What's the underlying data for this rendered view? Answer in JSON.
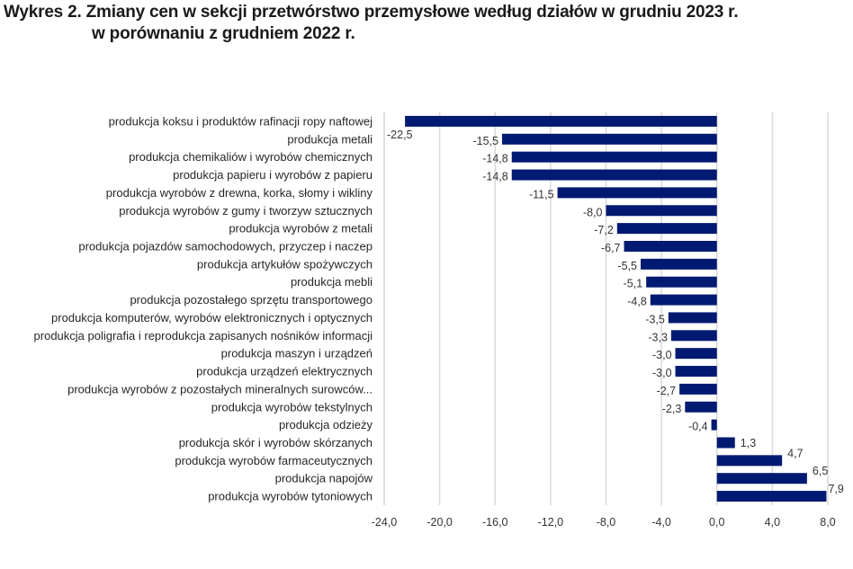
{
  "chart_data": {
    "type": "bar",
    "orientation": "horizontal",
    "title_line1": "Wykres 2. Zmiany cen w sekcji przetwórstwo przemysłowe według działów w grudniu 2023 r.",
    "title_line2": "w porównaniu z grudniem 2022 r.",
    "xlabel": "",
    "ylabel": "",
    "xlim": [
      -24,
      8
    ],
    "xticks": [
      -24,
      -20,
      -16,
      -12,
      -8,
      -4,
      0,
      4,
      8
    ],
    "xtick_labels": [
      "-24,0",
      "-20,0",
      "-16,0",
      "-12,0",
      "-8,0",
      "-4,0",
      "0,0",
      "4,0",
      "8,0"
    ],
    "grid": true,
    "legend": "none",
    "bar_color": "#001a72",
    "grid_color": "#d9d9d9",
    "categories": [
      "produkcja koksu i produktów rafinacji ropy naftowej",
      "produkcja metali",
      "produkcja chemikaliów i wyrobów chemicznych",
      "produkcja papieru i wyrobów z papieru",
      "produkcja wyrobów z drewna, korka, słomy i wikliny",
      "produkcja wyrobów z gumy i tworzyw sztucznych",
      "produkcja wyrobów z metali",
      "produkcja pojazdów samochodowych, przyczep i naczep",
      "produkcja artykułów spożywczych",
      "produkcja mebli",
      "produkcja pozostałego sprzętu transportowego",
      "produkcja komputerów, wyrobów elektronicznych i optycznych",
      "produkcja poligrafia i reprodukcja zapisanych nośników informacji",
      "produkcja maszyn i urządzeń",
      "produkcja urządzeń elektrycznych",
      "produkcja wyrobów z pozostałych mineralnych surowców...",
      "produkcja wyrobów tekstylnych",
      "produkcja odzieży",
      "produkcja skór i wyrobów skórzanych",
      "produkcja wyrobów farmaceutycznych",
      "produkcja napojów",
      "produkcja wyrobów tytoniowych"
    ],
    "values": [
      -22.5,
      -15.5,
      -14.8,
      -14.8,
      -11.5,
      -8.0,
      -7.2,
      -6.7,
      -5.5,
      -5.1,
      -4.8,
      -3.5,
      -3.3,
      -3.0,
      -3.0,
      -2.7,
      -2.3,
      -0.4,
      1.3,
      4.7,
      6.5,
      7.9
    ],
    "value_labels": [
      "-22,5",
      "-15,5",
      "-14,8",
      "-14,8",
      "-11,5",
      "-8,0",
      "-7,2",
      "-6,7",
      "-5,5",
      "-5,1",
      "-4,8",
      "-3,5",
      "-3,3",
      "-3,0",
      "-3,0",
      "-2,7",
      "-2,3",
      "-0,4",
      "1,3",
      "4,7",
      "6,5",
      "7,9"
    ]
  }
}
